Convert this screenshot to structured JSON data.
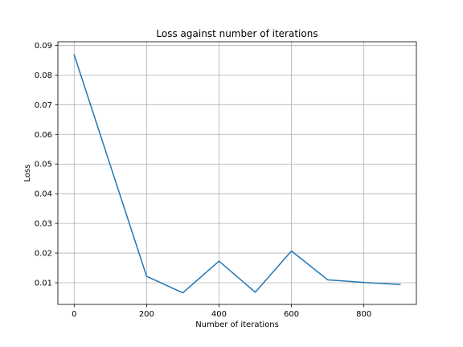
{
  "chart_data": {
    "type": "line",
    "title": "Loss against number of iterations",
    "xlabel": "Number of iterations",
    "ylabel": "Loss",
    "xlim": [
      -45,
      945
    ],
    "ylim": [
      0.0027,
      0.0912
    ],
    "xticks": [
      0,
      200,
      400,
      600,
      800
    ],
    "yticks": [
      0.01,
      0.02,
      0.03,
      0.04,
      0.05,
      0.06,
      0.07,
      0.08,
      0.09
    ],
    "grid": true,
    "series": [
      {
        "color": "#1f77b4",
        "x": [
          0,
          200,
          300,
          400,
          500,
          600,
          700,
          800,
          900
        ],
        "y": [
          0.0868,
          0.0122,
          0.0066,
          0.0173,
          0.0068,
          0.0207,
          0.011,
          0.0101,
          0.0094
        ]
      }
    ]
  }
}
